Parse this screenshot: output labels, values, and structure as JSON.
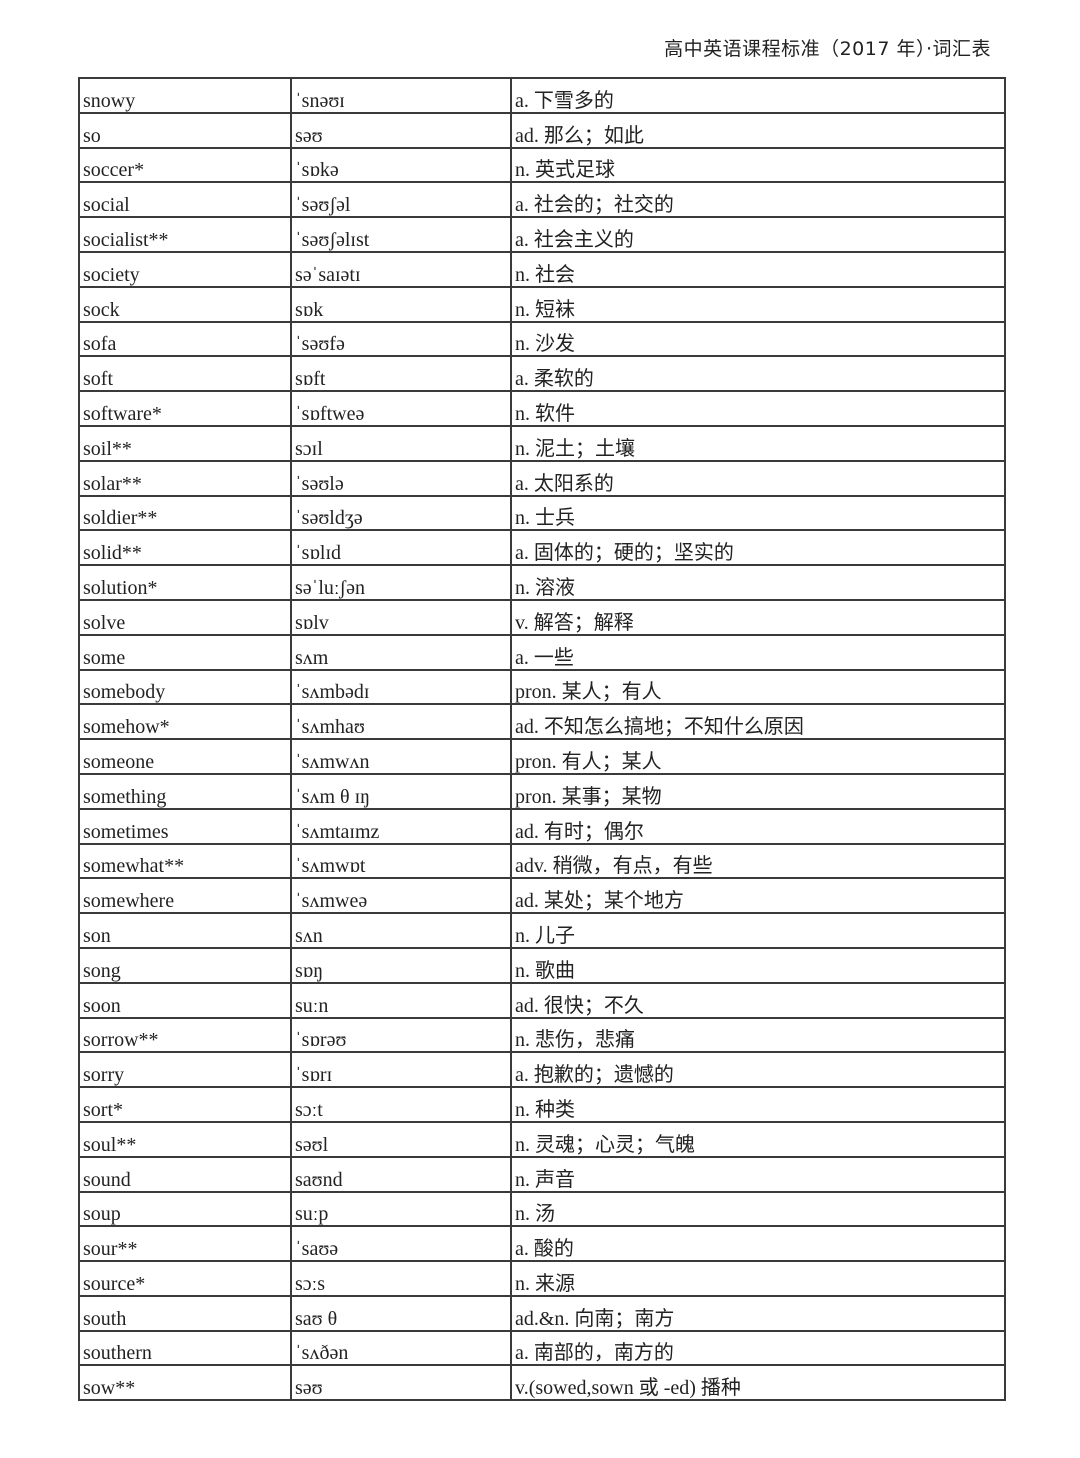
{
  "header": {
    "title": "高中英语课程标准（2017 年）·词汇表"
  },
  "rows": [
    {
      "word": "snowy",
      "ipa": "ˈsnəʊɪ",
      "def": "a. 下雪多的"
    },
    {
      "word": "so",
      "ipa": "səʊ",
      "def": "ad. 那么；如此"
    },
    {
      "word": "soccer*",
      "ipa": "ˈsɒkə",
      "def": "n. 英式足球"
    },
    {
      "word": "social",
      "ipa": "ˈsəʊʃəl",
      "def": "a. 社会的；社交的"
    },
    {
      "word": "socialist**",
      "ipa": "ˈsəʊʃəlɪst",
      "def": "a. 社会主义的"
    },
    {
      "word": "society",
      "ipa": "səˈsaɪətɪ",
      "def": "n. 社会"
    },
    {
      "word": "sock",
      "ipa": "sɒk",
      "def": "n. 短袜"
    },
    {
      "word": "sofa",
      "ipa": "ˈsəʊfə",
      "def": "n. 沙发"
    },
    {
      "word": "soft",
      "ipa": "sɒft",
      "def": "a. 柔软的"
    },
    {
      "word": "software*",
      "ipa": "ˈsɒftweə",
      "def": "n. 软件"
    },
    {
      "word": "soil**",
      "ipa": "sɔɪl",
      "def": "n. 泥土；土壤"
    },
    {
      "word": "solar**",
      "ipa": "ˈsəʊlə",
      "def": "a. 太阳系的"
    },
    {
      "word": "soldier**",
      "ipa": "ˈsəʊldʒə",
      "def": "n. 士兵"
    },
    {
      "word": "solid**",
      "ipa": "ˈsɒlɪd",
      "def": "a. 固体的；硬的；坚实的"
    },
    {
      "word": "solution*",
      "ipa": "səˈluːʃən",
      "def": "n. 溶液"
    },
    {
      "word": "solve",
      "ipa": "sɒlv",
      "def": "v. 解答；解释"
    },
    {
      "word": "some",
      "ipa": "sʌm",
      "def": "a. 一些"
    },
    {
      "word": "somebody",
      "ipa": "ˈsʌmbədɪ",
      "def": "pron. 某人；有人"
    },
    {
      "word": "somehow*",
      "ipa": "ˈsʌmhaʊ",
      "def": "ad. 不知怎么搞地；不知什么原因"
    },
    {
      "word": "someone",
      "ipa": "ˈsʌmwʌn",
      "def": "pron. 有人；某人"
    },
    {
      "word": "something",
      "ipa": "ˈsʌm θ ɪŋ",
      "def": "pron. 某事；某物"
    },
    {
      "word": "sometimes",
      "ipa": "ˈsʌmtaɪmz",
      "def": "ad. 有时；偶尔"
    },
    {
      "word": "somewhat**",
      "ipa": "ˈsʌmwɒt",
      "def": "adv. 稍微，有点，有些"
    },
    {
      "word": "somewhere",
      "ipa": "ˈsʌmweə",
      "def": "ad. 某处；某个地方"
    },
    {
      "word": "son",
      "ipa": "sʌn",
      "def": "n. 儿子"
    },
    {
      "word": "song",
      "ipa": "sɒŋ",
      "def": "n. 歌曲"
    },
    {
      "word": "soon",
      "ipa": "suːn",
      "def": "ad. 很快；不久"
    },
    {
      "word": "sorrow**",
      "ipa": "ˈsɒrəʊ",
      "def": "n. 悲伤，悲痛"
    },
    {
      "word": "sorry",
      "ipa": "ˈsɒrɪ",
      "def": "a. 抱歉的；遗憾的"
    },
    {
      "word": "sort*",
      "ipa": "sɔːt",
      "def": "n. 种类"
    },
    {
      "word": "soul**",
      "ipa": "səʊl",
      "def": "n. 灵魂；心灵；气魄"
    },
    {
      "word": "sound",
      "ipa": "saʊnd",
      "def": "n. 声音"
    },
    {
      "word": "soup",
      "ipa": "suːp",
      "def": "n. 汤"
    },
    {
      "word": "sour**",
      "ipa": "ˈsaʊə",
      "def": "a. 酸的"
    },
    {
      "word": "source*",
      "ipa": "sɔːs",
      "def": "n. 来源"
    },
    {
      "word": "south",
      "ipa": "saʊ θ",
      "def": "ad.&n. 向南；南方"
    },
    {
      "word": "southern",
      "ipa": "ˈsʌðən",
      "def": "a. 南部的，南方的"
    },
    {
      "word": "sow**",
      "ipa": "səʊ",
      "def": "v.(sowed,sown 或 -ed) 播种"
    }
  ]
}
